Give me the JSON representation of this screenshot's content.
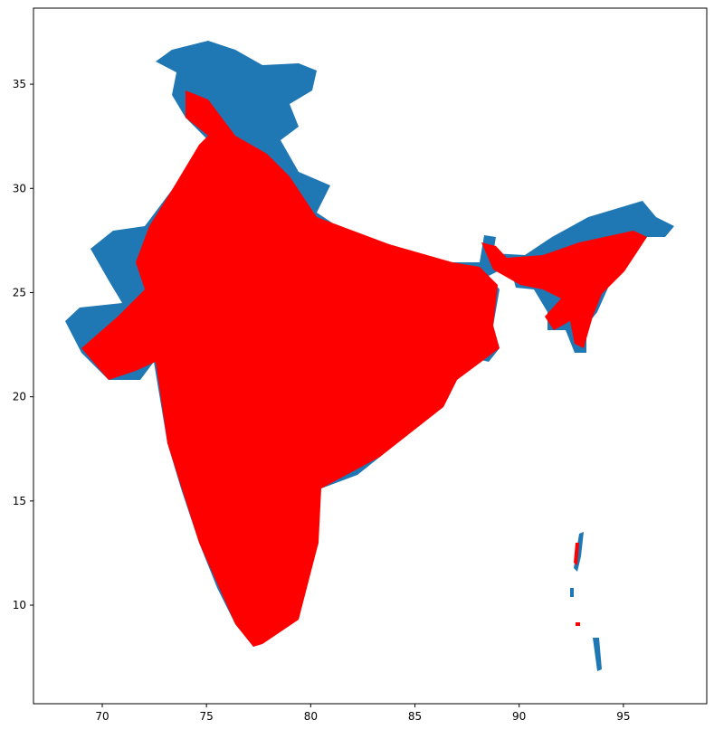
{
  "chart_data": {
    "type": "map",
    "region_color": "#1f77b4",
    "point_color": "#ff0000",
    "xlim": [
      66.7,
      99.0
    ],
    "ylim": [
      5.27,
      38.65
    ],
    "xticks": [
      70,
      75,
      80,
      85,
      90,
      95
    ],
    "yticks": [
      10,
      15,
      20,
      25,
      30,
      35
    ]
  }
}
